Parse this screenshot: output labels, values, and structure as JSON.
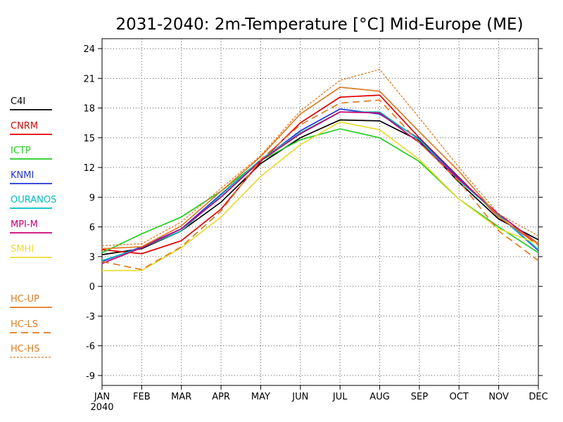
{
  "chart_data": {
    "type": "line",
    "title": "2031-2040: 2m-Temperature [°C] Mid-Europe (ME)",
    "x_categories": [
      "JAN",
      "FEB",
      "MAR",
      "APR",
      "MAY",
      "JUN",
      "JUL",
      "AUG",
      "SEP",
      "OCT",
      "NOV",
      "DEC"
    ],
    "x_sublabel": "2040",
    "ylim": [
      -10,
      25
    ],
    "y_ticks": [
      "24",
      "21",
      "18",
      "15",
      "12",
      "9",
      "6",
      "3",
      "0",
      "-3",
      "-6",
      "-9"
    ],
    "grid": true,
    "legend_position": "left",
    "series": [
      {
        "name": "C4I",
        "color": "#000000",
        "style": "solid",
        "values": [
          3.2,
          3.8,
          5.6,
          8.5,
          12.4,
          15.0,
          16.8,
          16.7,
          14.7,
          10.5,
          6.8,
          4.7
        ]
      },
      {
        "name": "CNRM",
        "color": "#e00000",
        "style": "solid",
        "values": [
          3.7,
          3.3,
          4.6,
          7.8,
          12.6,
          16.5,
          19.1,
          19.3,
          15.0,
          11.0,
          7.0,
          4.2
        ]
      },
      {
        "name": "ICTP",
        "color": "#22cc22",
        "style": "solid",
        "values": [
          3.4,
          5.3,
          7.0,
          9.6,
          12.7,
          14.8,
          15.9,
          15.0,
          12.6,
          8.8,
          6.0,
          3.4
        ]
      },
      {
        "name": "KNMI",
        "color": "#2233dd",
        "style": "solid",
        "values": [
          2.5,
          4.0,
          5.8,
          9.3,
          12.7,
          15.7,
          17.9,
          17.4,
          14.9,
          10.9,
          7.2,
          3.6
        ]
      },
      {
        "name": "OURANOS",
        "color": "#00bbbb",
        "style": "solid",
        "values": [
          2.6,
          3.9,
          5.6,
          9.2,
          12.8,
          15.5,
          17.6,
          17.6,
          14.8,
          10.7,
          7.2,
          3.7
        ]
      },
      {
        "name": "MPI-M",
        "color": "#cc0077",
        "style": "solid",
        "values": [
          2.3,
          3.9,
          5.8,
          9.0,
          12.7,
          15.4,
          17.6,
          17.5,
          14.5,
          10.8,
          7.3,
          4.3
        ]
      },
      {
        "name": "SMHI",
        "color": "#e8dd33",
        "style": "solid",
        "values": [
          1.6,
          1.6,
          3.9,
          7.0,
          11.1,
          14.3,
          16.6,
          15.8,
          12.8,
          8.8,
          5.8,
          4.3
        ]
      },
      {
        "name": "HC-UP",
        "color": "#e07b22",
        "style": "solid",
        "values": [
          3.8,
          4.0,
          6.1,
          9.6,
          13.1,
          17.4,
          20.1,
          19.7,
          15.6,
          11.6,
          7.0,
          4.3
        ]
      },
      {
        "name": "HC-LS",
        "color": "#e07b22",
        "style": "dashed",
        "values": [
          2.5,
          1.7,
          4.0,
          7.6,
          12.8,
          16.3,
          18.5,
          18.8,
          14.5,
          10.6,
          5.6,
          2.6
        ]
      },
      {
        "name": "HC-HS",
        "color": "#e07b22",
        "style": "dotted",
        "values": [
          4.1,
          4.3,
          6.5,
          9.9,
          13.2,
          17.7,
          20.8,
          21.9,
          17.0,
          12.0,
          7.3,
          5.1
        ]
      }
    ]
  }
}
